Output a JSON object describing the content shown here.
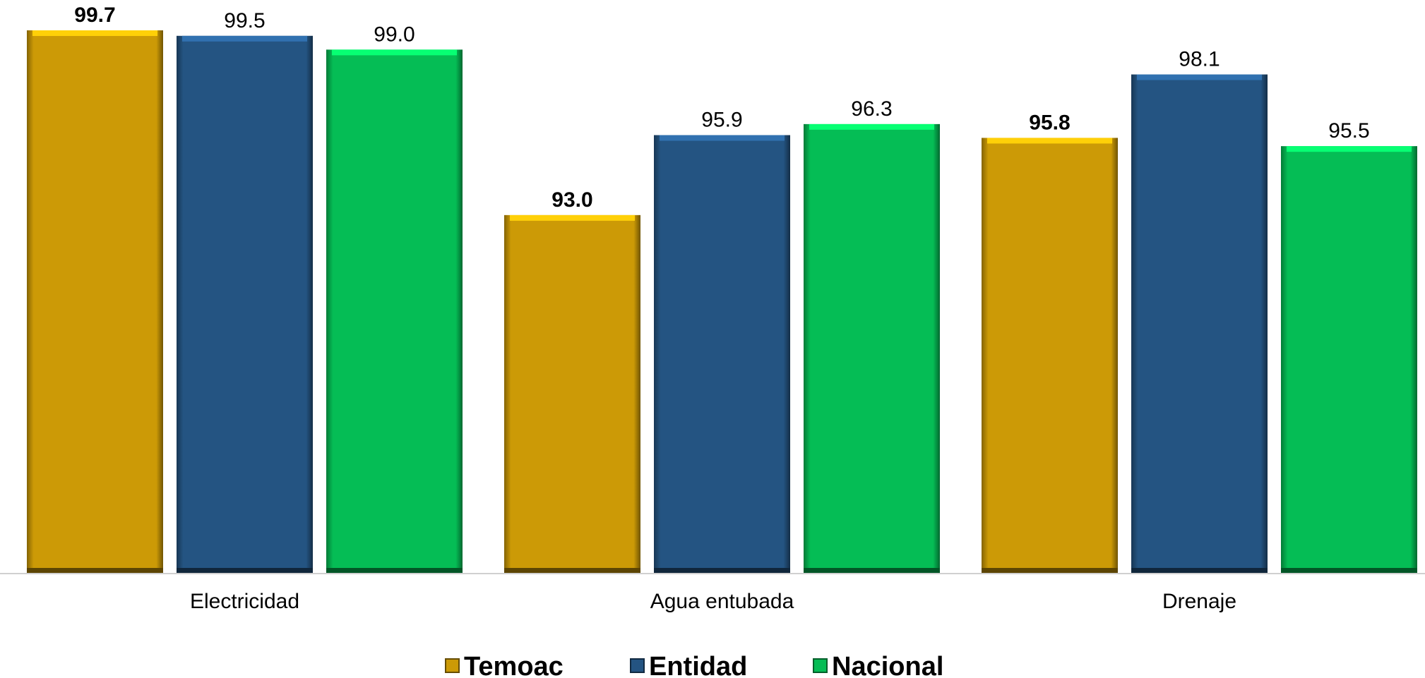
{
  "chart_data": {
    "type": "bar",
    "categories": [
      "Electricidad",
      "Agua entubada",
      "Drenaje"
    ],
    "series": [
      {
        "name": "Temoac",
        "values": [
          99.7,
          93.0,
          95.8
        ],
        "color": "#CC9A06",
        "label_bold": true
      },
      {
        "name": "Entidad",
        "values": [
          99.5,
          95.9,
          98.1
        ],
        "color": "#245482",
        "label_bold": false
      },
      {
        "name": "Nacional",
        "values": [
          99.0,
          96.3,
          95.5
        ],
        "color": "#05BD55",
        "label_bold": false
      }
    ],
    "value_labels": [
      [
        "99.7",
        "93.0",
        "95.8"
      ],
      [
        "99.5",
        "95.9",
        "98.1"
      ],
      [
        "99.0",
        "96.3",
        "95.5"
      ]
    ],
    "title": "",
    "xlabel": "",
    "ylabel": "",
    "ylim": [
      80,
      100
    ],
    "grid": false,
    "legend_position": "bottom"
  }
}
